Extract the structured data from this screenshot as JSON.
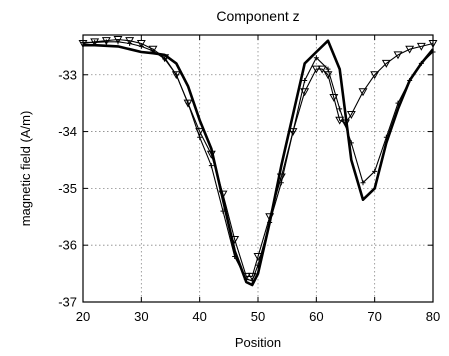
{
  "chart_data": {
    "type": "line",
    "title": "Component z",
    "xlabel": "Position",
    "ylabel": "magnetic field (A/m)",
    "xlim": [
      20,
      80
    ],
    "ylim": [
      -37,
      -32.3
    ],
    "xticks": [
      20,
      30,
      40,
      50,
      60,
      70,
      80
    ],
    "yticks": [
      -37,
      -36,
      -35,
      -34,
      -33
    ],
    "grid": true,
    "series": [
      {
        "marker": "none",
        "x": [
          20,
          22,
          24,
          26,
          28,
          30,
          32,
          34,
          36,
          38,
          40,
          42,
          44,
          46,
          48,
          49,
          50,
          52,
          54,
          56,
          58,
          60,
          62,
          64,
          66,
          68,
          70,
          72,
          74,
          76,
          78,
          80
        ],
        "y": [
          -32.48,
          -32.48,
          -32.49,
          -32.5,
          -32.55,
          -32.6,
          -32.62,
          -32.65,
          -32.8,
          -33.2,
          -33.8,
          -34.3,
          -35.2,
          -36.1,
          -36.65,
          -36.7,
          -36.5,
          -35.6,
          -34.6,
          -33.7,
          -32.8,
          -32.6,
          -32.4,
          -32.9,
          -34.5,
          -35.2,
          -35.0,
          -34.2,
          -33.6,
          -33.1,
          -32.8,
          -32.55
        ]
      },
      {
        "marker": "triangle-down",
        "x": [
          20,
          22,
          24,
          26,
          28,
          30,
          32,
          34,
          36,
          38,
          40,
          42,
          44,
          46,
          48,
          49,
          50,
          52,
          54,
          56,
          58,
          60,
          61,
          62,
          63,
          64,
          65,
          66,
          68,
          70,
          72,
          74,
          76,
          78,
          80
        ],
        "y": [
          -32.45,
          -32.42,
          -32.4,
          -32.38,
          -32.4,
          -32.45,
          -32.55,
          -32.7,
          -33.0,
          -33.5,
          -34.0,
          -34.4,
          -35.1,
          -35.9,
          -36.55,
          -36.55,
          -36.2,
          -35.5,
          -34.8,
          -34.0,
          -33.3,
          -32.9,
          -32.9,
          -33.0,
          -33.4,
          -33.8,
          -33.85,
          -33.7,
          -33.3,
          -33.0,
          -32.8,
          -32.65,
          -32.55,
          -32.5,
          -32.45
        ]
      },
      {
        "marker": "plus",
        "x": [
          20,
          22,
          24,
          26,
          28,
          30,
          32,
          34,
          36,
          38,
          40,
          42,
          44,
          46,
          48,
          49,
          50,
          52,
          54,
          56,
          58,
          60,
          62,
          64,
          66,
          68,
          70,
          72,
          74,
          76,
          78,
          80
        ],
        "y": [
          -32.43,
          -32.43,
          -32.42,
          -32.42,
          -32.45,
          -32.5,
          -32.58,
          -32.72,
          -33.0,
          -33.5,
          -34.1,
          -34.6,
          -35.4,
          -36.2,
          -36.6,
          -36.62,
          -36.35,
          -35.6,
          -34.9,
          -34.0,
          -33.1,
          -32.7,
          -32.9,
          -33.6,
          -34.2,
          -34.9,
          -34.7,
          -34.1,
          -33.5,
          -33.1,
          -32.8,
          -32.6
        ]
      }
    ]
  }
}
